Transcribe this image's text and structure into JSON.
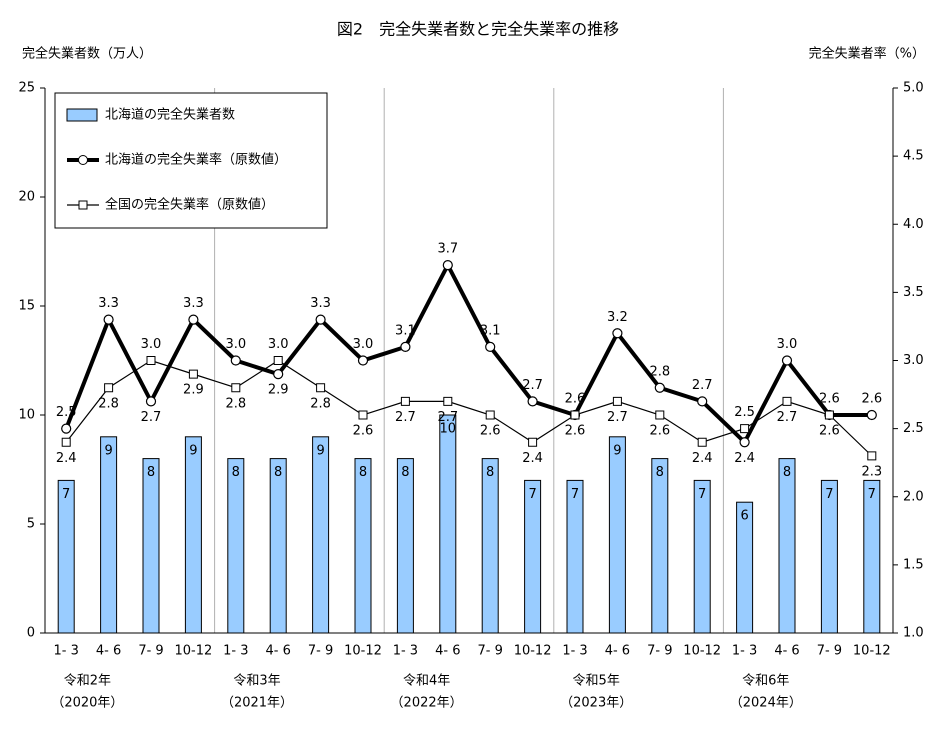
{
  "chart_data": {
    "type": "bar_line",
    "title": "図2　完全失業者数と完全失業率の推移",
    "ylabel": "完全失業者数（万人）",
    "y2label": "完全失業者率（%）",
    "categories": [
      "1- 3",
      "4- 6",
      "7- 9",
      "10-12",
      "1- 3",
      "4- 6",
      "7- 9",
      "10-12",
      "1- 3",
      "4- 6",
      "7- 9",
      "10-12",
      "1- 3",
      "4- 6",
      "7- 9",
      "10-12",
      "1- 3",
      "4- 6",
      "7- 9",
      "10-12"
    ],
    "year_labels": [
      [
        "令和2年",
        "（2020年）"
      ],
      [
        "令和3年",
        "（2021年）"
      ],
      [
        "令和4年",
        "（2022年）"
      ],
      [
        "令和5年",
        "（2023年）"
      ],
      [
        "令和6年",
        "（2024年）"
      ]
    ],
    "series": [
      {
        "name": "北海道の完全失業者数",
        "type": "bar",
        "color": "#99ccff",
        "values": [
          7,
          9,
          8,
          9,
          8,
          8,
          9,
          8,
          8,
          10,
          8,
          7,
          7,
          9,
          8,
          7,
          6,
          8,
          7,
          7
        ]
      },
      {
        "name": "北海道の完全失業率（原数値）",
        "type": "line",
        "axis": "y2",
        "color": "#000000",
        "marker": "circle",
        "values": [
          2.5,
          3.3,
          2.7,
          3.3,
          3.0,
          2.9,
          3.3,
          3.0,
          3.1,
          3.7,
          3.1,
          2.7,
          2.6,
          3.2,
          2.8,
          2.7,
          2.4,
          3.0,
          2.6,
          2.6
        ],
        "value_labels": [
          "2.5",
          "3.3",
          "2.7",
          "3.3",
          "3.0",
          "2.9",
          "3.3",
          "3.0",
          "3.1",
          "3.7",
          "3.1",
          "2.7",
          "2.6",
          "3.2",
          "2.8",
          "2.7",
          "2.4",
          "3.0",
          "2.6",
          "2.6"
        ]
      },
      {
        "name": "全国の完全失業率（原数値）",
        "type": "line",
        "axis": "y2",
        "color": "#000000",
        "marker": "square",
        "values": [
          2.4,
          2.8,
          3.0,
          2.9,
          2.8,
          3.0,
          2.8,
          2.6,
          2.7,
          2.7,
          2.6,
          2.4,
          2.6,
          2.7,
          2.6,
          2.4,
          2.5,
          2.7,
          2.6,
          2.3
        ],
        "value_labels": [
          "2.4",
          "2.8",
          "3.0",
          "2.9",
          "2.8",
          "3.0",
          "2.8",
          "2.6",
          "2.7",
          "2.7",
          "2.6",
          "2.4",
          "2.6",
          "2.7",
          "2.6",
          "2.4",
          "2.5",
          "2.7",
          "2.6",
          "2.3"
        ]
      }
    ],
    "ylim": [
      0,
      25
    ],
    "yticks": [
      0,
      5,
      10,
      15,
      20,
      25
    ],
    "y2lim": [
      1,
      5
    ],
    "y2ticks": [
      {
        "value": 1,
        "label": "1.0"
      },
      {
        "value": 1.5,
        "label": "1.5"
      },
      {
        "value": 2,
        "label": "2.0"
      },
      {
        "value": 2.5,
        "label": "2.5"
      },
      {
        "value": 3,
        "label": "3.0"
      },
      {
        "value": 3.5,
        "label": "3.5"
      },
      {
        "value": 4,
        "label": "4.0"
      },
      {
        "value": 4.5,
        "label": "4.5"
      },
      {
        "value": 5,
        "label": "5.0"
      }
    ],
    "legend": "upper left"
  }
}
